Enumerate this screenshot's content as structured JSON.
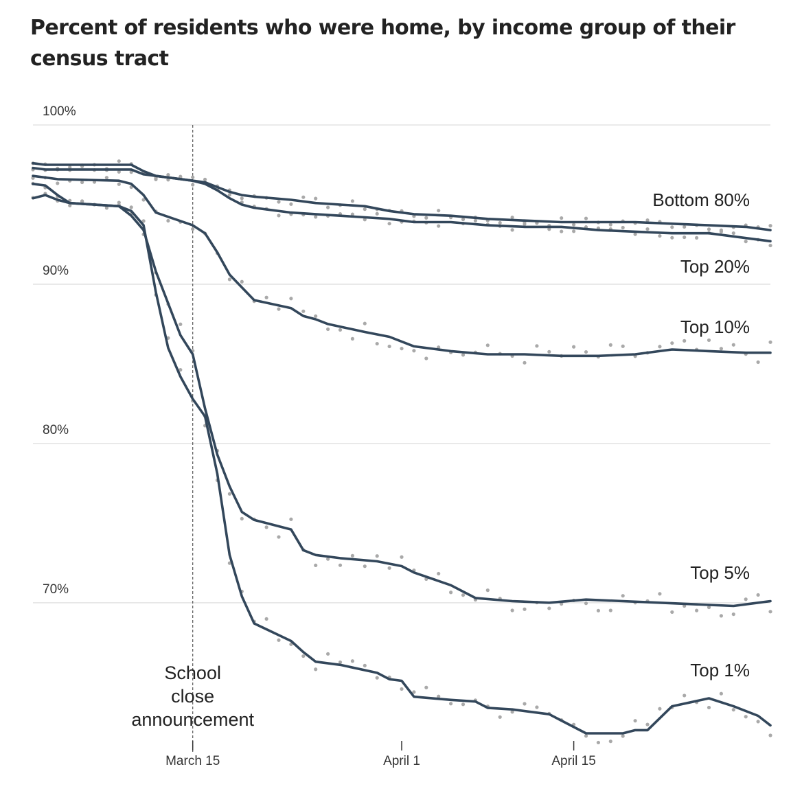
{
  "title": "Percent of residents who were home, by income group of their census tract",
  "colors": {
    "line": "#33475b",
    "dot": "#a9a9a9",
    "grid": "#dddddd",
    "axis": "#333333"
  },
  "chart_data": {
    "type": "line",
    "title": "Percent of residents who were home, by income group of their census tract",
    "y_ticks": [
      "100%",
      "90%",
      "80%",
      "70%"
    ],
    "y_tick_values": [
      100,
      90,
      80,
      70
    ],
    "ylim": [
      61.5,
      100
    ],
    "x_ticks": [
      "March 15",
      "April 1",
      "April 15"
    ],
    "x_tick_values": [
      "2020-03-15",
      "2020-04-01",
      "2020-04-15"
    ],
    "xlim": [
      "2020-03-02",
      "2020-05-01"
    ],
    "grid": true,
    "annotation": {
      "date": "2020-03-15",
      "text": [
        "School",
        "close",
        "announcement"
      ]
    },
    "series": [
      {
        "name": "Bottom 80%",
        "x": [
          "2020-03-02",
          "2020-03-03",
          "2020-03-04",
          "2020-03-09",
          "2020-03-10",
          "2020-03-11",
          "2020-03-12",
          "2020-03-15",
          "2020-03-16",
          "2020-03-17",
          "2020-03-18",
          "2020-03-19",
          "2020-03-20",
          "2020-03-23",
          "2020-03-25",
          "2020-03-27",
          "2020-03-29",
          "2020-03-31",
          "2020-04-02",
          "2020-04-05",
          "2020-04-08",
          "2020-04-11",
          "2020-04-14",
          "2020-04-17",
          "2020-04-20",
          "2020-04-23",
          "2020-04-26",
          "2020-04-29",
          "2020-05-01"
        ],
        "y": [
          97.6,
          97.5,
          97.5,
          97.5,
          97.5,
          97.1,
          96.8,
          96.5,
          96.4,
          96.1,
          95.8,
          95.6,
          95.5,
          95.3,
          95.1,
          95.0,
          94.9,
          94.6,
          94.4,
          94.3,
          94.1,
          94.0,
          93.9,
          93.9,
          93.9,
          93.8,
          93.7,
          93.6,
          93.4
        ]
      },
      {
        "name": "Top 20%",
        "x": [
          "2020-03-02",
          "2020-03-03",
          "2020-03-04",
          "2020-03-09",
          "2020-03-10",
          "2020-03-11",
          "2020-03-12",
          "2020-03-15",
          "2020-03-16",
          "2020-03-17",
          "2020-03-18",
          "2020-03-19",
          "2020-03-20",
          "2020-03-23",
          "2020-03-25",
          "2020-03-27",
          "2020-03-29",
          "2020-03-31",
          "2020-04-02",
          "2020-04-05",
          "2020-04-08",
          "2020-04-11",
          "2020-04-14",
          "2020-04-17",
          "2020-04-20",
          "2020-04-23",
          "2020-04-26",
          "2020-04-29",
          "2020-05-01"
        ],
        "y": [
          97.3,
          97.2,
          97.2,
          97.2,
          97.2,
          96.9,
          96.8,
          96.5,
          96.3,
          95.9,
          95.4,
          95.0,
          94.8,
          94.5,
          94.4,
          94.3,
          94.2,
          94.1,
          93.9,
          93.9,
          93.7,
          93.6,
          93.6,
          93.4,
          93.3,
          93.2,
          93.2,
          92.9,
          92.7
        ]
      },
      {
        "name": "Top 10%",
        "x": [
          "2020-03-02",
          "2020-03-03",
          "2020-03-04",
          "2020-03-09",
          "2020-03-10",
          "2020-03-11",
          "2020-03-12",
          "2020-03-15",
          "2020-03-16",
          "2020-03-17",
          "2020-03-18",
          "2020-03-19",
          "2020-03-20",
          "2020-03-23",
          "2020-03-24",
          "2020-03-25",
          "2020-03-26",
          "2020-03-29",
          "2020-03-31",
          "2020-04-02",
          "2020-04-05",
          "2020-04-08",
          "2020-04-11",
          "2020-04-14",
          "2020-04-17",
          "2020-04-20",
          "2020-04-23",
          "2020-04-26",
          "2020-04-29",
          "2020-05-01"
        ],
        "y": [
          96.8,
          96.7,
          96.6,
          96.5,
          96.3,
          95.6,
          94.5,
          93.7,
          93.2,
          92.0,
          90.6,
          89.8,
          89.0,
          88.5,
          88.0,
          87.8,
          87.5,
          87.0,
          86.7,
          86.1,
          85.8,
          85.6,
          85.6,
          85.5,
          85.5,
          85.6,
          85.9,
          85.8,
          85.7,
          85.7
        ]
      },
      {
        "name": "Top 5%",
        "x": [
          "2020-03-02",
          "2020-03-03",
          "2020-03-04",
          "2020-03-05",
          "2020-03-09",
          "2020-03-10",
          "2020-03-11",
          "2020-03-12",
          "2020-03-14",
          "2020-03-15",
          "2020-03-16",
          "2020-03-17",
          "2020-03-18",
          "2020-03-19",
          "2020-03-20",
          "2020-03-23",
          "2020-03-24",
          "2020-03-25",
          "2020-03-27",
          "2020-03-30",
          "2020-04-01",
          "2020-04-02",
          "2020-04-05",
          "2020-04-07",
          "2020-04-10",
          "2020-04-13",
          "2020-04-16",
          "2020-04-19",
          "2020-04-22",
          "2020-04-25",
          "2020-04-28",
          "2020-04-30",
          "2020-05-01"
        ],
        "y": [
          95.4,
          95.6,
          95.3,
          95.1,
          94.9,
          94.3,
          93.4,
          90.8,
          86.8,
          85.6,
          82.2,
          79.3,
          77.3,
          75.7,
          75.2,
          74.6,
          73.3,
          73.0,
          72.8,
          72.6,
          72.3,
          71.9,
          71.1,
          70.3,
          70.1,
          70.0,
          70.2,
          70.1,
          70.0,
          69.9,
          69.8,
          70.0,
          70.1
        ]
      },
      {
        "name": "Top 1%",
        "x": [
          "2020-03-02",
          "2020-03-03",
          "2020-03-04",
          "2020-03-05",
          "2020-03-09",
          "2020-03-10",
          "2020-03-11",
          "2020-03-12",
          "2020-03-13",
          "2020-03-14",
          "2020-03-15",
          "2020-03-16",
          "2020-03-17",
          "2020-03-18",
          "2020-03-19",
          "2020-03-20",
          "2020-03-23",
          "2020-03-24",
          "2020-03-25",
          "2020-03-27",
          "2020-03-30",
          "2020-03-31",
          "2020-04-01",
          "2020-04-02",
          "2020-04-05",
          "2020-04-07",
          "2020-04-08",
          "2020-04-10",
          "2020-04-13",
          "2020-04-14",
          "2020-04-16",
          "2020-04-19",
          "2020-04-20",
          "2020-04-21",
          "2020-04-23",
          "2020-04-26",
          "2020-04-28",
          "2020-04-30",
          "2020-05-01"
        ],
        "y": [
          96.3,
          96.2,
          95.6,
          95.1,
          94.9,
          94.6,
          93.7,
          89.5,
          86.0,
          84.2,
          82.8,
          81.7,
          78.1,
          73.0,
          70.4,
          68.7,
          67.6,
          66.9,
          66.3,
          66.1,
          65.6,
          65.2,
          65.1,
          64.1,
          63.9,
          63.8,
          63.4,
          63.3,
          63.0,
          62.6,
          61.8,
          61.8,
          62.0,
          62.0,
          63.5,
          64.0,
          63.5,
          62.9,
          62.3
        ]
      }
    ]
  }
}
